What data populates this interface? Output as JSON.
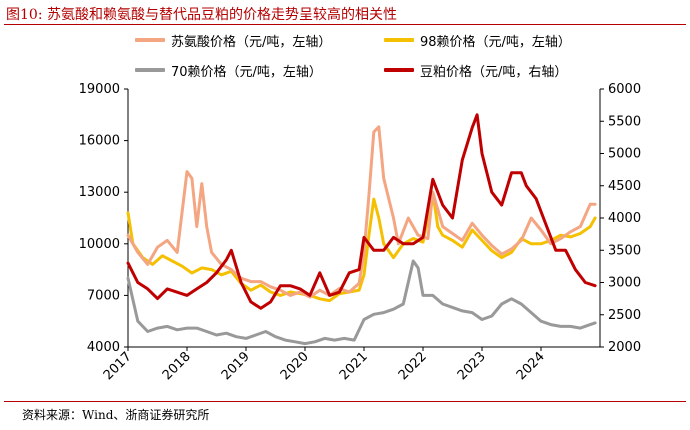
{
  "title": "图10:   苏氨酸和赖氨酸与替代品豆粕的价格走势呈较高的相关性",
  "source": "资料来源：Wind、浙商证券研究所",
  "chart_data": {
    "type": "line",
    "x_ticks": [
      "2017",
      "2018",
      "2019",
      "2020",
      "2021",
      "2022",
      "2023",
      "2024"
    ],
    "x_range": [
      "2017-01",
      "2024-12"
    ],
    "y_left": {
      "range": [
        4000,
        19000
      ],
      "ticks": [
        4000,
        7000,
        10000,
        13000,
        16000,
        19000
      ]
    },
    "y_right": {
      "range": [
        2000,
        6000
      ],
      "ticks": [
        2000,
        2500,
        3000,
        3500,
        4000,
        4500,
        5000,
        5500,
        6000
      ]
    },
    "grid": false,
    "legend": "top",
    "series": [
      {
        "name": "苏氨酸价格（元/吨，左轴）",
        "axis": "left",
        "color": "#f4a582",
        "points": [
          [
            "2017-01",
            10500
          ],
          [
            "2017-03",
            9500
          ],
          [
            "2017-05",
            8800
          ],
          [
            "2017-07",
            9800
          ],
          [
            "2017-09",
            10200
          ],
          [
            "2017-11",
            9500
          ],
          [
            "2018-01",
            14200
          ],
          [
            "2018-02",
            13800
          ],
          [
            "2018-03",
            11000
          ],
          [
            "2018-04",
            13500
          ],
          [
            "2018-05",
            11000
          ],
          [
            "2018-06",
            9500
          ],
          [
            "2018-08",
            8800
          ],
          [
            "2018-10",
            8500
          ],
          [
            "2018-12",
            8000
          ],
          [
            "2019-02",
            7800
          ],
          [
            "2019-04",
            7800
          ],
          [
            "2019-06",
            7500
          ],
          [
            "2019-08",
            7300
          ],
          [
            "2019-10",
            7000
          ],
          [
            "2019-12",
            7200
          ],
          [
            "2020-02",
            6900
          ],
          [
            "2020-04",
            7300
          ],
          [
            "2020-06",
            7000
          ],
          [
            "2020-08",
            7400
          ],
          [
            "2020-10",
            7200
          ],
          [
            "2020-12",
            7700
          ],
          [
            "2021-01",
            9500
          ],
          [
            "2021-02",
            12800
          ],
          [
            "2021-03",
            16500
          ],
          [
            "2021-04",
            16800
          ],
          [
            "2021-05",
            13800
          ],
          [
            "2021-07",
            11500
          ],
          [
            "2021-08",
            10000
          ],
          [
            "2021-10",
            11500
          ],
          [
            "2021-12",
            10500
          ],
          [
            "2022-02",
            10300
          ],
          [
            "2022-03",
            13000
          ],
          [
            "2022-04",
            12000
          ],
          [
            "2022-05",
            11000
          ],
          [
            "2022-07",
            10600
          ],
          [
            "2022-09",
            10200
          ],
          [
            "2022-11",
            11200
          ],
          [
            "2023-01",
            10500
          ],
          [
            "2023-03",
            9900
          ],
          [
            "2023-05",
            9400
          ],
          [
            "2023-07",
            9700
          ],
          [
            "2023-09",
            10200
          ],
          [
            "2023-11",
            11500
          ],
          [
            "2024-01",
            10800
          ],
          [
            "2024-03",
            10000
          ],
          [
            "2024-05",
            10300
          ],
          [
            "2024-07",
            10700
          ],
          [
            "2024-09",
            11000
          ],
          [
            "2024-11",
            12300
          ],
          [
            "2024-12",
            12300
          ]
        ]
      },
      {
        "name": "98赖价格（元/吨，左轴）",
        "axis": "left",
        "color": "#f5c000",
        "points": [
          [
            "2017-01",
            11800
          ],
          [
            "2017-02",
            10000
          ],
          [
            "2017-04",
            9200
          ],
          [
            "2017-06",
            8800
          ],
          [
            "2017-08",
            9300
          ],
          [
            "2017-10",
            9000
          ],
          [
            "2017-12",
            8700
          ],
          [
            "2018-02",
            8300
          ],
          [
            "2018-04",
            8600
          ],
          [
            "2018-06",
            8500
          ],
          [
            "2018-08",
            8200
          ],
          [
            "2018-10",
            8400
          ],
          [
            "2018-12",
            7700
          ],
          [
            "2019-02",
            7300
          ],
          [
            "2019-04",
            7600
          ],
          [
            "2019-06",
            7200
          ],
          [
            "2019-08",
            7000
          ],
          [
            "2019-10",
            7200
          ],
          [
            "2019-12",
            7100
          ],
          [
            "2020-02",
            7000
          ],
          [
            "2020-04",
            6800
          ],
          [
            "2020-06",
            6700
          ],
          [
            "2020-08",
            7100
          ],
          [
            "2020-10",
            7200
          ],
          [
            "2020-12",
            7300
          ],
          [
            "2021-01",
            8200
          ],
          [
            "2021-02",
            10500
          ],
          [
            "2021-03",
            12600
          ],
          [
            "2021-04",
            11500
          ],
          [
            "2021-05",
            10000
          ],
          [
            "2021-07",
            9200
          ],
          [
            "2021-09",
            10000
          ],
          [
            "2021-11",
            10300
          ],
          [
            "2022-01",
            10100
          ],
          [
            "2022-03",
            13000
          ],
          [
            "2022-04",
            11000
          ],
          [
            "2022-05",
            10500
          ],
          [
            "2022-07",
            10200
          ],
          [
            "2022-09",
            9800
          ],
          [
            "2022-11",
            10800
          ],
          [
            "2023-01",
            10200
          ],
          [
            "2023-03",
            9600
          ],
          [
            "2023-05",
            9200
          ],
          [
            "2023-07",
            9500
          ],
          [
            "2023-09",
            10300
          ],
          [
            "2023-11",
            10000
          ],
          [
            "2024-01",
            10000
          ],
          [
            "2024-03",
            10200
          ],
          [
            "2024-05",
            10500
          ],
          [
            "2024-07",
            10400
          ],
          [
            "2024-09",
            10600
          ],
          [
            "2024-11",
            11000
          ],
          [
            "2024-12",
            11500
          ]
        ]
      },
      {
        "name": "70赖价格（元/吨，左轴）",
        "axis": "left",
        "color": "#999999",
        "points": [
          [
            "2017-01",
            8000
          ],
          [
            "2017-03",
            5500
          ],
          [
            "2017-05",
            4900
          ],
          [
            "2017-07",
            5100
          ],
          [
            "2017-09",
            5200
          ],
          [
            "2017-11",
            5000
          ],
          [
            "2018-01",
            5100
          ],
          [
            "2018-03",
            5100
          ],
          [
            "2018-05",
            4900
          ],
          [
            "2018-07",
            4700
          ],
          [
            "2018-09",
            4800
          ],
          [
            "2018-11",
            4600
          ],
          [
            "2019-01",
            4500
          ],
          [
            "2019-03",
            4700
          ],
          [
            "2019-05",
            4900
          ],
          [
            "2019-07",
            4600
          ],
          [
            "2019-09",
            4400
          ],
          [
            "2019-11",
            4300
          ],
          [
            "2020-01",
            4200
          ],
          [
            "2020-03",
            4300
          ],
          [
            "2020-05",
            4500
          ],
          [
            "2020-07",
            4400
          ],
          [
            "2020-09",
            4500
          ],
          [
            "2020-11",
            4400
          ],
          [
            "2021-01",
            5600
          ],
          [
            "2021-03",
            5900
          ],
          [
            "2021-05",
            6000
          ],
          [
            "2021-07",
            6200
          ],
          [
            "2021-09",
            6500
          ],
          [
            "2021-11",
            9000
          ],
          [
            "2021-12",
            8600
          ],
          [
            "2022-01",
            7000
          ],
          [
            "2022-03",
            7000
          ],
          [
            "2022-05",
            6500
          ],
          [
            "2022-07",
            6300
          ],
          [
            "2022-09",
            6100
          ],
          [
            "2022-11",
            6000
          ],
          [
            "2023-01",
            5600
          ],
          [
            "2023-03",
            5800
          ],
          [
            "2023-05",
            6500
          ],
          [
            "2023-07",
            6800
          ],
          [
            "2023-09",
            6500
          ],
          [
            "2023-11",
            6000
          ],
          [
            "2024-01",
            5500
          ],
          [
            "2024-03",
            5300
          ],
          [
            "2024-05",
            5200
          ],
          [
            "2024-07",
            5200
          ],
          [
            "2024-09",
            5100
          ],
          [
            "2024-11",
            5300
          ],
          [
            "2024-12",
            5400
          ]
        ]
      },
      {
        "name": "豆粕价格（元/吨，右轴）",
        "axis": "right",
        "color": "#c00000",
        "points": [
          [
            "2017-01",
            3300
          ],
          [
            "2017-03",
            3000
          ],
          [
            "2017-05",
            2900
          ],
          [
            "2017-07",
            2750
          ],
          [
            "2017-09",
            2900
          ],
          [
            "2017-11",
            2850
          ],
          [
            "2018-01",
            2800
          ],
          [
            "2018-03",
            2900
          ],
          [
            "2018-05",
            3000
          ],
          [
            "2018-07",
            3150
          ],
          [
            "2018-09",
            3350
          ],
          [
            "2018-10",
            3500
          ],
          [
            "2018-12",
            3000
          ],
          [
            "2019-02",
            2700
          ],
          [
            "2019-04",
            2600
          ],
          [
            "2019-06",
            2700
          ],
          [
            "2019-08",
            2950
          ],
          [
            "2019-10",
            2950
          ],
          [
            "2019-12",
            2900
          ],
          [
            "2020-02",
            2800
          ],
          [
            "2020-04",
            3150
          ],
          [
            "2020-06",
            2800
          ],
          [
            "2020-08",
            2850
          ],
          [
            "2020-10",
            3150
          ],
          [
            "2020-12",
            3200
          ],
          [
            "2021-01",
            3700
          ],
          [
            "2021-03",
            3500
          ],
          [
            "2021-05",
            3500
          ],
          [
            "2021-07",
            3700
          ],
          [
            "2021-09",
            3600
          ],
          [
            "2021-11",
            3600
          ],
          [
            "2022-01",
            3700
          ],
          [
            "2022-03",
            4600
          ],
          [
            "2022-05",
            4200
          ],
          [
            "2022-07",
            4000
          ],
          [
            "2022-09",
            4900
          ],
          [
            "2022-11",
            5400
          ],
          [
            "2022-12",
            5600
          ],
          [
            "2023-01",
            5000
          ],
          [
            "2023-03",
            4400
          ],
          [
            "2023-05",
            4200
          ],
          [
            "2023-07",
            4700
          ],
          [
            "2023-09",
            4700
          ],
          [
            "2023-10",
            4500
          ],
          [
            "2023-12",
            4300
          ],
          [
            "2024-02",
            3900
          ],
          [
            "2024-04",
            3500
          ],
          [
            "2024-06",
            3500
          ],
          [
            "2024-08",
            3200
          ],
          [
            "2024-10",
            3000
          ],
          [
            "2024-12",
            2950
          ]
        ]
      }
    ]
  }
}
